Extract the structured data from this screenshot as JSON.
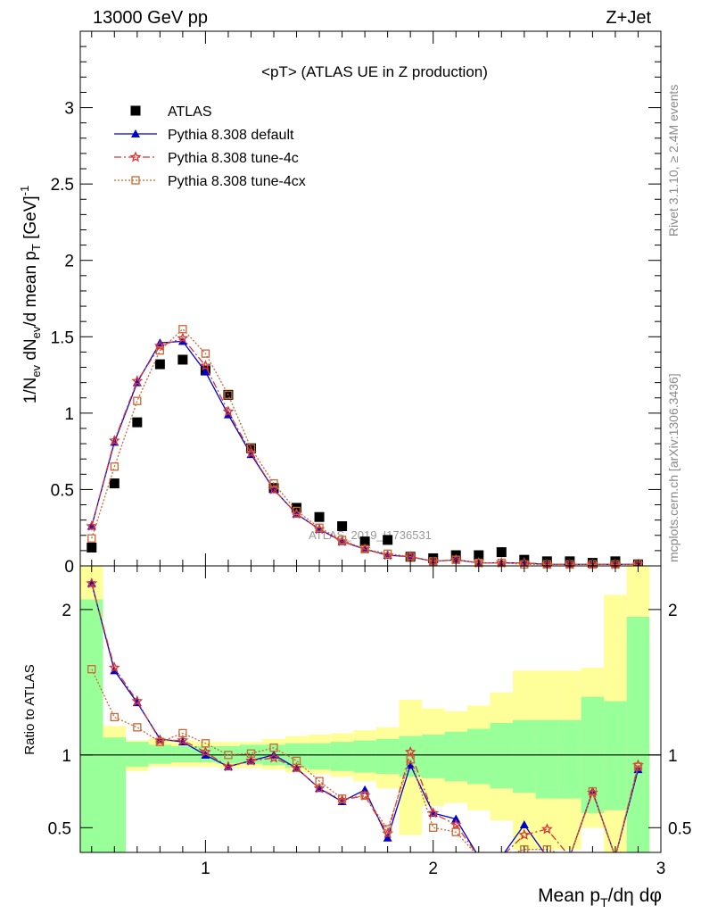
{
  "header": {
    "left": "13000 GeV pp",
    "right": "Z+Jet"
  },
  "side_labels": {
    "rivet": "Rivet 3.1.10, ≥ 2.4M events",
    "mcplots": "mcplots.cern.ch [arXiv:1306.3436]"
  },
  "chart_data": [
    {
      "type": "scatter",
      "title": "<pT> (ATLAS UE in Z production)",
      "watermark": "ATLAS_2019_I1736531",
      "ylabel": "1/N_ev dN_ev/d mean p_T [GeV]^-1",
      "xlim": [
        0.45,
        3.0
      ],
      "ylim": [
        0,
        3.5
      ],
      "yticks": [
        "0",
        "0.5",
        "1",
        "1.5",
        "2",
        "2.5",
        "3"
      ],
      "legend_position": "top-left",
      "x": [
        0.5,
        0.6,
        0.7,
        0.8,
        0.9,
        1.0,
        1.1,
        1.2,
        1.3,
        1.4,
        1.5,
        1.6,
        1.7,
        1.8,
        1.9,
        2.0,
        2.1,
        2.2,
        2.3,
        2.4,
        2.5,
        2.6,
        2.7,
        2.8,
        2.9
      ],
      "series": [
        {
          "name": "ATLAS",
          "style": "data",
          "color": "#000000",
          "values": [
            0.12,
            0.54,
            0.94,
            1.32,
            1.35,
            1.28,
            1.12,
            0.77,
            0.51,
            0.38,
            0.32,
            0.26,
            0.16,
            0.17,
            0.06,
            0.05,
            0.07,
            0.07,
            0.09,
            0.04,
            0.03,
            0.03,
            0.02,
            0.03,
            0.01
          ]
        },
        {
          "name": "Pythia 8.308 default",
          "style": "solid",
          "color": "#0000cc",
          "marker": "triangle",
          "values": [
            0.26,
            0.81,
            1.2,
            1.46,
            1.47,
            1.27,
            0.99,
            0.73,
            0.5,
            0.34,
            0.24,
            0.16,
            0.11,
            0.07,
            0.06,
            0.03,
            0.04,
            0.02,
            0.02,
            0.02,
            0.01,
            0.01,
            0.01,
            0.01,
            0.01
          ]
        },
        {
          "name": "Pythia 8.308 tune-4c",
          "style": "dashdot",
          "color": "#dd3333",
          "marker": "star",
          "values": [
            0.26,
            0.82,
            1.21,
            1.44,
            1.49,
            1.31,
            1.01,
            0.74,
            0.5,
            0.34,
            0.24,
            0.16,
            0.11,
            0.07,
            0.06,
            0.03,
            0.04,
            0.02,
            0.02,
            0.02,
            0.01,
            0.01,
            0.01,
            0.01,
            0.01
          ]
        },
        {
          "name": "Pythia 8.308 tune-4cx",
          "style": "dotted",
          "color": "#cc6633",
          "marker": "square",
          "values": [
            0.18,
            0.65,
            1.08,
            1.41,
            1.55,
            1.39,
            1.12,
            0.77,
            0.54,
            0.36,
            0.25,
            0.17,
            0.11,
            0.08,
            0.06,
            0.03,
            0.04,
            0.02,
            0.02,
            0.01,
            0.01,
            0.01,
            0.01,
            0.01,
            0.01
          ]
        }
      ]
    },
    {
      "type": "line",
      "ylabel": "Ratio to ATLAS",
      "xlabel": "Mean p_T/dη dφ",
      "xlim": [
        0.45,
        3.0
      ],
      "ylim": [
        0.33,
        2.3
      ],
      "xticks": [
        "1",
        "2",
        "3"
      ],
      "yticks": [
        "0.5",
        "1",
        "2"
      ],
      "x": [
        0.5,
        0.6,
        0.7,
        0.8,
        0.9,
        1.0,
        1.1,
        1.2,
        1.3,
        1.4,
        1.5,
        1.6,
        1.7,
        1.8,
        1.9,
        2.0,
        2.1,
        2.2,
        2.3,
        2.4,
        2.5,
        2.6,
        2.7,
        2.8,
        2.9
      ],
      "band_edges": [
        0.45,
        0.55,
        0.65,
        0.75,
        0.85,
        0.95,
        1.05,
        1.15,
        1.25,
        1.35,
        1.45,
        1.55,
        1.65,
        1.75,
        1.85,
        1.95,
        2.05,
        2.15,
        2.25,
        2.35,
        2.45,
        2.55,
        2.65,
        2.75,
        2.85,
        2.95
      ],
      "band_green": [
        [
          0.3,
          2.07
        ],
        [
          0.3,
          1.12
        ],
        [
          0.92,
          1.09
        ],
        [
          0.94,
          1.07
        ],
        [
          0.95,
          1.06
        ],
        [
          0.95,
          1.06
        ],
        [
          0.94,
          1.06
        ],
        [
          0.94,
          1.07
        ],
        [
          0.93,
          1.07
        ],
        [
          0.91,
          1.08
        ],
        [
          0.9,
          1.08
        ],
        [
          0.89,
          1.09
        ],
        [
          0.88,
          1.1
        ],
        [
          0.87,
          1.11
        ],
        [
          0.85,
          1.13
        ],
        [
          0.84,
          1.14
        ],
        [
          0.82,
          1.16
        ],
        [
          0.8,
          1.18
        ],
        [
          0.77,
          1.22
        ],
        [
          0.74,
          1.24
        ],
        [
          0.7,
          1.24
        ],
        [
          0.7,
          1.24
        ],
        [
          0.6,
          1.4
        ],
        [
          0.62,
          1.37
        ],
        [
          0.3,
          1.95
        ]
      ],
      "band_yellow": [
        [
          0.3,
          2.3
        ],
        [
          0.8,
          1.2
        ],
        [
          0.89,
          1.1
        ],
        [
          0.92,
          1.11
        ],
        [
          0.92,
          1.1
        ],
        [
          0.92,
          1.09
        ],
        [
          0.91,
          1.09
        ],
        [
          0.91,
          1.09
        ],
        [
          0.9,
          1.11
        ],
        [
          0.88,
          1.13
        ],
        [
          0.87,
          1.14
        ],
        [
          0.85,
          1.15
        ],
        [
          0.82,
          1.17
        ],
        [
          0.77,
          1.19
        ],
        [
          0.45,
          1.38
        ],
        [
          0.65,
          1.32
        ],
        [
          0.67,
          1.3
        ],
        [
          0.62,
          1.34
        ],
        [
          0.55,
          1.43
        ],
        [
          0.35,
          1.58
        ],
        [
          0.35,
          1.58
        ],
        [
          0.35,
          1.58
        ],
        [
          0.5,
          1.6
        ],
        [
          0.3,
          2.1
        ],
        [
          0.3,
          2.3
        ]
      ],
      "series": [
        {
          "name": "Pythia 8.308 default",
          "style": "solid",
          "color": "#0000cc",
          "marker": "triangle",
          "values": [
            2.18,
            1.58,
            1.36,
            1.11,
            1.09,
            1.0,
            0.92,
            0.96,
            1.0,
            0.91,
            0.77,
            0.68,
            0.76,
            0.43,
            0.93,
            0.6,
            0.56,
            0.3,
            0.3,
            0.52,
            0.3,
            0.3,
            0.75,
            0.3,
            0.9
          ]
        },
        {
          "name": "Pythia 8.308 tune-4c",
          "style": "dashdot",
          "color": "#dd3333",
          "marker": "star",
          "values": [
            2.18,
            1.6,
            1.37,
            1.1,
            1.1,
            1.02,
            0.92,
            0.96,
            0.98,
            0.91,
            0.77,
            0.69,
            0.72,
            0.46,
            1.02,
            0.6,
            0.52,
            0.3,
            0.3,
            0.45,
            0.49,
            0.3,
            0.74,
            0.3,
            0.93
          ]
        },
        {
          "name": "Pythia 8.308 tune-4cx",
          "style": "dotted",
          "color": "#cc6633",
          "marker": "square",
          "values": [
            1.59,
            1.26,
            1.19,
            1.09,
            1.15,
            1.08,
            1.0,
            1.01,
            1.05,
            0.96,
            0.82,
            0.7,
            0.72,
            0.49,
            0.97,
            0.5,
            0.47,
            0.3,
            0.3,
            0.35,
            0.35,
            0.3,
            0.75,
            0.3,
            0.92
          ]
        }
      ]
    }
  ]
}
